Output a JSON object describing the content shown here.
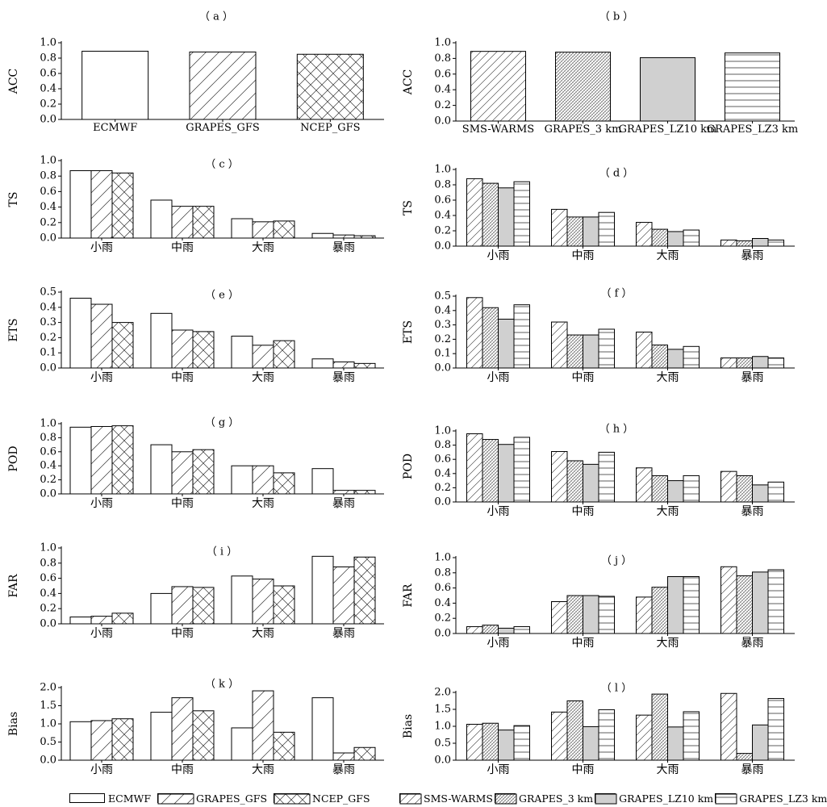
{
  "colors": {
    "axis": "#000000",
    "bar_stroke": "#000000",
    "bar_fill": "#ffffff",
    "gray_fill": "#d0d0d0"
  },
  "legend_left": [
    "ECMWF",
    "GRAPES_GFS",
    "NCEP_GFS"
  ],
  "legend_right": [
    "SMS-WARMS",
    "GRAPES_3 km",
    "GRAPES_LZ10 km",
    "GRAPES_LZ3 km"
  ],
  "chart_data": [
    {
      "panel": "(a)",
      "type": "bar",
      "ylabel": "ACC",
      "ylim": [
        0,
        1.0
      ],
      "yticks": [
        "0.0",
        "0.2",
        "0.4",
        "0.6",
        "0.8",
        "1.0"
      ],
      "categories": [
        "ECMWF",
        "GRAPES_GFS",
        "NCEP_GFS"
      ],
      "series": [
        {
          "values": [
            0.89,
            0.88,
            0.85
          ]
        }
      ]
    },
    {
      "panel": "(b)",
      "type": "bar",
      "ylabel": "ACC",
      "ylim": [
        0,
        1.0
      ],
      "yticks": [
        "0.0",
        "0.2",
        "0.4",
        "0.6",
        "0.8",
        "1.0"
      ],
      "categories": [
        "SMS-WARMS",
        "GRAPES_3 km",
        "GRAPES_LZ10 km",
        "GRAPES_LZ3 km"
      ],
      "series": [
        {
          "values": [
            0.89,
            0.88,
            0.81,
            0.87
          ]
        }
      ]
    },
    {
      "panel": "(c)",
      "type": "bar",
      "ylabel": "TS",
      "ylim": [
        0,
        1.0
      ],
      "yticks": [
        "0.0",
        "0.2",
        "0.4",
        "0.6",
        "0.8",
        "1.0"
      ],
      "categories": [
        "小雨",
        "中雨",
        "大雨",
        "暴雨"
      ],
      "series": [
        {
          "name": "ECMWF",
          "values": [
            0.87,
            0.49,
            0.25,
            0.06
          ]
        },
        {
          "name": "GRAPES_GFS",
          "values": [
            0.87,
            0.41,
            0.21,
            0.04
          ]
        },
        {
          "name": "NCEP_GFS",
          "values": [
            0.84,
            0.41,
            0.22,
            0.03
          ]
        }
      ]
    },
    {
      "panel": "(d)",
      "type": "bar",
      "ylabel": "TS",
      "ylim": [
        0,
        1.0
      ],
      "yticks": [
        "0.0",
        "0.2",
        "0.4",
        "0.6",
        "0.8",
        "1.0"
      ],
      "categories": [
        "小雨",
        "中雨",
        "大雨",
        "暴雨"
      ],
      "series": [
        {
          "name": "SMS-WARMS",
          "values": [
            0.88,
            0.48,
            0.31,
            0.08
          ]
        },
        {
          "name": "GRAPES_3 km",
          "values": [
            0.82,
            0.38,
            0.22,
            0.07
          ]
        },
        {
          "name": "GRAPES_LZ10 km",
          "values": [
            0.76,
            0.38,
            0.19,
            0.1
          ]
        },
        {
          "name": "GRAPES_LZ3 km",
          "values": [
            0.84,
            0.44,
            0.21,
            0.08
          ]
        }
      ]
    },
    {
      "panel": "(e)",
      "type": "bar",
      "ylabel": "ETS",
      "ylim": [
        0,
        0.5
      ],
      "yticks": [
        "0.0",
        "0.1",
        "0.2",
        "0.3",
        "0.4",
        "0.5"
      ],
      "categories": [
        "小雨",
        "中雨",
        "大雨",
        "暴雨"
      ],
      "series": [
        {
          "name": "ECMWF",
          "values": [
            0.46,
            0.36,
            0.21,
            0.06
          ]
        },
        {
          "name": "GRAPES_GFS",
          "values": [
            0.42,
            0.25,
            0.15,
            0.04
          ]
        },
        {
          "name": "NCEP_GFS",
          "values": [
            0.3,
            0.24,
            0.18,
            0.03
          ]
        }
      ]
    },
    {
      "panel": "(f)",
      "type": "bar",
      "ylabel": "ETS",
      "ylim": [
        0,
        0.5
      ],
      "yticks": [
        "0.0",
        "0.1",
        "0.2",
        "0.3",
        "0.4",
        "0.5"
      ],
      "categories": [
        "小雨",
        "中雨",
        "大雨",
        "暴雨"
      ],
      "series": [
        {
          "name": "SMS-WARMS",
          "values": [
            0.49,
            0.32,
            0.25,
            0.07
          ]
        },
        {
          "name": "GRAPES_3 km",
          "values": [
            0.42,
            0.23,
            0.16,
            0.07
          ]
        },
        {
          "name": "GRAPES_LZ10 km",
          "values": [
            0.34,
            0.23,
            0.13,
            0.08
          ]
        },
        {
          "name": "GRAPES_LZ3 km",
          "values": [
            0.44,
            0.27,
            0.15,
            0.07
          ]
        }
      ]
    },
    {
      "panel": "(g)",
      "type": "bar",
      "ylabel": "POD",
      "ylim": [
        0,
        1.0
      ],
      "yticks": [
        "0.0",
        "0.2",
        "0.4",
        "0.6",
        "0.8",
        "1.0"
      ],
      "categories": [
        "小雨",
        "中雨",
        "大雨",
        "暴雨"
      ],
      "series": [
        {
          "name": "ECMWF",
          "values": [
            0.95,
            0.7,
            0.4,
            0.36
          ]
        },
        {
          "name": "GRAPES_GFS",
          "values": [
            0.96,
            0.6,
            0.4,
            0.05
          ]
        },
        {
          "name": "NCEP_GFS",
          "values": [
            0.97,
            0.63,
            0.3,
            0.05
          ]
        }
      ]
    },
    {
      "panel": "(h)",
      "type": "bar",
      "ylabel": "POD",
      "ylim": [
        0,
        1.0
      ],
      "yticks": [
        "0.0",
        "0.2",
        "0.4",
        "0.6",
        "0.8",
        "1.0"
      ],
      "categories": [
        "小雨",
        "中雨",
        "大雨",
        "暴雨"
      ],
      "series": [
        {
          "name": "SMS-WARMS",
          "values": [
            0.96,
            0.71,
            0.48,
            0.43
          ]
        },
        {
          "name": "GRAPES_3 km",
          "values": [
            0.88,
            0.58,
            0.37,
            0.37
          ]
        },
        {
          "name": "GRAPES_LZ10 km",
          "values": [
            0.81,
            0.53,
            0.3,
            0.24
          ]
        },
        {
          "name": "GRAPES_LZ3 km",
          "values": [
            0.91,
            0.7,
            0.37,
            0.28
          ]
        }
      ]
    },
    {
      "panel": "(i)",
      "type": "bar",
      "ylabel": "FAR",
      "ylim": [
        0,
        1.0
      ],
      "yticks": [
        "0.0",
        "0.2",
        "0.4",
        "0.6",
        "0.8",
        "1.0"
      ],
      "categories": [
        "小雨",
        "中雨",
        "大雨",
        "暴雨"
      ],
      "series": [
        {
          "name": "ECMWF",
          "values": [
            0.09,
            0.4,
            0.63,
            0.89
          ]
        },
        {
          "name": "GRAPES_GFS",
          "values": [
            0.1,
            0.49,
            0.59,
            0.75
          ]
        },
        {
          "name": "NCEP_GFS",
          "values": [
            0.14,
            0.48,
            0.5,
            0.88
          ]
        }
      ]
    },
    {
      "panel": "(j)",
      "type": "bar",
      "ylabel": "FAR",
      "ylim": [
        0,
        1.0
      ],
      "yticks": [
        "0.0",
        "0.2",
        "0.4",
        "0.6",
        "0.8",
        "1.0"
      ],
      "categories": [
        "小雨",
        "中雨",
        "大雨",
        "暴雨"
      ],
      "series": [
        {
          "name": "SMS-WARMS",
          "values": [
            0.09,
            0.42,
            0.48,
            0.88
          ]
        },
        {
          "name": "GRAPES_3 km",
          "values": [
            0.11,
            0.5,
            0.61,
            0.76
          ]
        },
        {
          "name": "GRAPES_LZ10 km",
          "values": [
            0.07,
            0.5,
            0.75,
            0.81
          ]
        },
        {
          "name": "GRAPES_LZ3 km",
          "values": [
            0.09,
            0.49,
            0.75,
            0.84
          ]
        }
      ]
    },
    {
      "panel": "(k)",
      "type": "bar",
      "ylabel": "Bias",
      "ylim": [
        0,
        2.0
      ],
      "yticks": [
        "0.0",
        "0.5",
        "1.0",
        "1.5",
        "2.0"
      ],
      "categories": [
        "小雨",
        "中雨",
        "大雨",
        "暴雨"
      ],
      "series": [
        {
          "name": "ECMWF",
          "values": [
            1.06,
            1.32,
            0.89,
            1.72
          ]
        },
        {
          "name": "GRAPES_GFS",
          "values": [
            1.09,
            1.72,
            1.91,
            0.2
          ]
        },
        {
          "name": "NCEP_GFS",
          "values": [
            1.14,
            1.36,
            0.77,
            0.35
          ]
        }
      ]
    },
    {
      "panel": "(l)",
      "type": "bar",
      "ylabel": "Bias",
      "ylim": [
        0,
        2.0
      ],
      "yticks": [
        "0.0",
        "0.5",
        "1.0",
        "1.5",
        "2.0"
      ],
      "categories": [
        "小雨",
        "中雨",
        "大雨",
        "暴雨"
      ],
      "series": [
        {
          "name": "SMS-WARMS",
          "values": [
            1.06,
            1.42,
            1.33,
            1.97
          ]
        },
        {
          "name": "GRAPES_3 km",
          "values": [
            1.09,
            1.75,
            1.95,
            0.2
          ]
        },
        {
          "name": "GRAPES_LZ10 km",
          "values": [
            0.89,
            0.99,
            0.98,
            1.04
          ]
        },
        {
          "name": "GRAPES_LZ3 km",
          "values": [
            1.02,
            1.49,
            1.43,
            1.82
          ]
        }
      ]
    }
  ]
}
